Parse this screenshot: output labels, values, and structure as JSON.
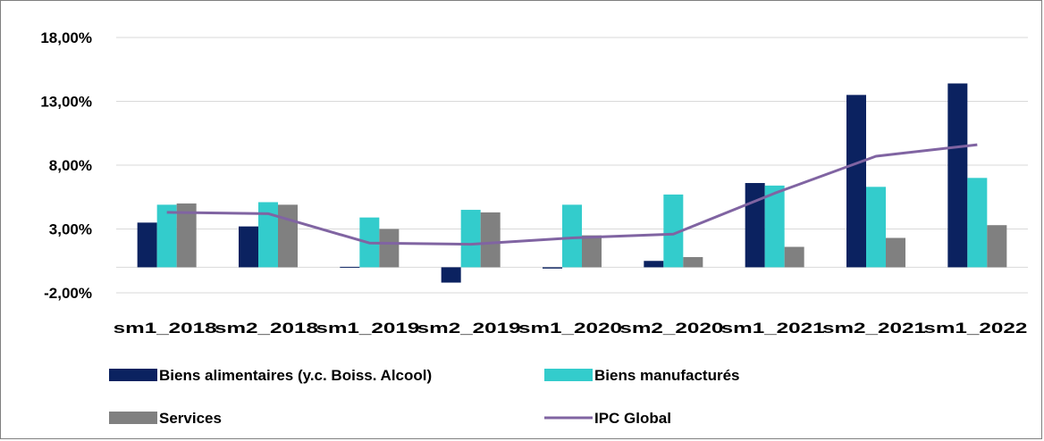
{
  "chart_data": {
    "type": "bar",
    "title": "",
    "xlabel": "",
    "ylabel": "",
    "categories": [
      "sm1_2018",
      "sm2_2018",
      "sm1_2019",
      "sm2_2019",
      "sm1_2020",
      "sm2_2020",
      "sm1_2021",
      "sm2_2021",
      "sm1_2022"
    ],
    "series": [
      {
        "name": "Biens alimentaires (y.c. Boiss. Alcool)",
        "kind": "bar",
        "color": "#0b2260",
        "values": [
          3.5,
          3.2,
          0.0,
          -1.2,
          -0.1,
          0.5,
          6.6,
          13.5,
          14.4
        ]
      },
      {
        "name": "Biens manufacturés",
        "kind": "bar",
        "color": "#33cccc",
        "values": [
          4.9,
          5.1,
          3.9,
          4.5,
          4.9,
          5.7,
          6.4,
          6.3,
          7.0
        ]
      },
      {
        "name": "Services",
        "kind": "bar",
        "color": "#808080",
        "values": [
          5.0,
          4.9,
          3.0,
          4.3,
          2.5,
          0.8,
          1.6,
          2.3,
          3.3
        ]
      },
      {
        "name": "IPC Global",
        "kind": "line",
        "color": "#8064a2",
        "values": [
          4.3,
          4.2,
          1.9,
          1.8,
          2.3,
          2.6,
          5.8,
          8.7,
          9.6
        ]
      }
    ],
    "ylim": [
      -2,
      18
    ],
    "yticks": [
      -2,
      3,
      8,
      13,
      18
    ],
    "ytick_labels": [
      "-2,00%",
      "3,00%",
      "8,00%",
      "13,00%",
      "18,00%"
    ],
    "grid": true,
    "legend_position": "bottom"
  }
}
